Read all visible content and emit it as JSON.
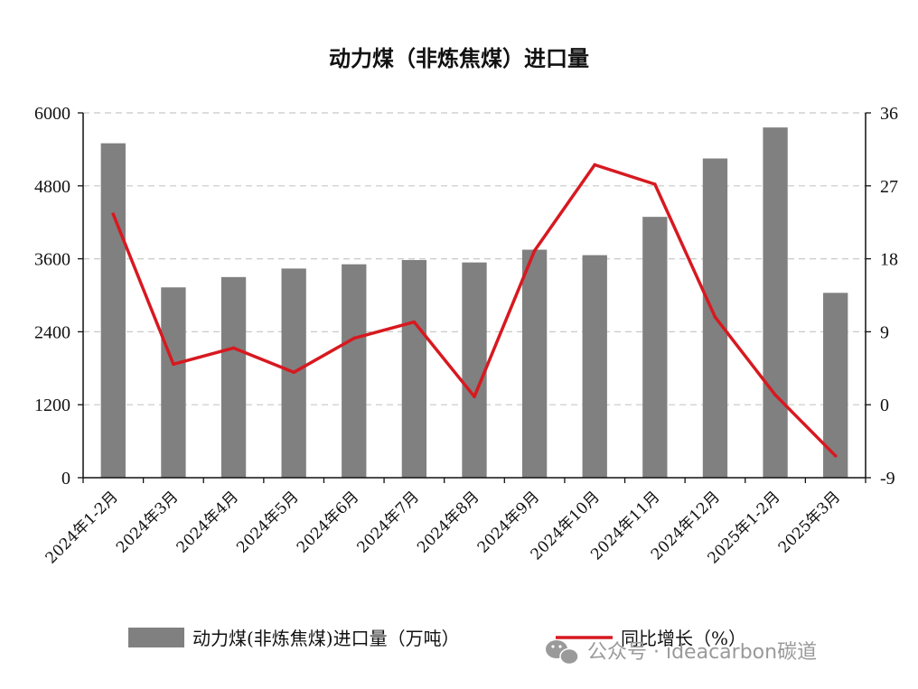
{
  "chart_data": {
    "type": "bar",
    "title": "动力煤（非炼焦煤）进口量",
    "categories": [
      "2024年1-2月",
      "2024年3月",
      "2024年4月",
      "2024年5月",
      "2024年6月",
      "2024年7月",
      "2024年8月",
      "2024年9月",
      "2024年10月",
      "2024年11月",
      "2024年12月",
      "2025年1-2月",
      "2025年3月"
    ],
    "series": [
      {
        "name": "动力煤(非炼焦煤)进口量（万吨）",
        "type": "bar",
        "axis": "left",
        "color": "#808080",
        "values": [
          5500,
          3130,
          3300,
          3440,
          3510,
          3580,
          3540,
          3750,
          3660,
          4290,
          5250,
          5760,
          3040
        ]
      },
      {
        "name": "同比增长（%）",
        "type": "line",
        "axis": "right",
        "color": "#d71920",
        "values": [
          23.5,
          5.0,
          7.0,
          4.0,
          8.2,
          10.2,
          1.0,
          19.0,
          29.6,
          27.2,
          10.8,
          1.2,
          -6.3
        ]
      }
    ],
    "y_left": {
      "ylim": [
        0,
        6000
      ],
      "ticks": [
        "0",
        "1200",
        "2400",
        "3600",
        "4800",
        "6000"
      ]
    },
    "y_right": {
      "ylim": [
        -9,
        36
      ],
      "ticks": [
        "-9",
        "0",
        "9",
        "18",
        "27",
        "36"
      ]
    },
    "grid": true,
    "legend_position": "bottom"
  },
  "watermark": {
    "text": "公众号 · ideacarbon碳道"
  }
}
